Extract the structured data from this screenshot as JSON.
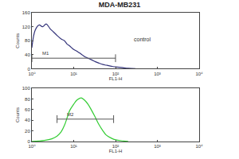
{
  "chart_data": [
    {
      "type": "line",
      "title": "MDA-MB231",
      "x_label": "FL1-H",
      "y_label": "Counts",
      "log": "x",
      "grid": false,
      "color": "#33337a",
      "x": [
        1,
        1.2,
        1.5,
        1.8,
        2.2,
        2.7,
        3.3,
        4,
        5,
        6,
        7,
        8,
        10,
        12,
        15,
        18,
        22,
        27,
        33,
        40,
        50,
        60,
        80,
        100,
        150,
        200,
        300
      ],
      "values": [
        60,
        110,
        125,
        120,
        128,
        115,
        105,
        95,
        85,
        80,
        70,
        65,
        55,
        50,
        42,
        35,
        30,
        25,
        20,
        16,
        12,
        10,
        7,
        5,
        3,
        1,
        0
      ],
      "xlim": [
        1,
        10000
      ],
      "xticks": [
        {
          "value": 1,
          "label": "10⁰"
        },
        {
          "value": 10,
          "label": "10¹"
        },
        {
          "value": 100,
          "label": "10²"
        },
        {
          "value": 1000,
          "label": "10³"
        },
        {
          "value": 10000,
          "label": "10⁴"
        }
      ],
      "ylim": [
        0,
        160
      ],
      "yticks": [
        0,
        40,
        80,
        120,
        160
      ],
      "gates": [
        {
          "label": "M1",
          "range": [
            1,
            100
          ],
          "level": 30
        }
      ],
      "annotations": [
        {
          "text": "control",
          "x": 250,
          "y": 85
        }
      ]
    },
    {
      "type": "line",
      "x_label": "FL1-H",
      "y_label": "Counts",
      "log": "x",
      "grid": false,
      "color": "#33cc33",
      "x": [
        1,
        2,
        3,
        4,
        5,
        6,
        7,
        8,
        10,
        12,
        15,
        18,
        22,
        27,
        33,
        40,
        50,
        60,
        80,
        100,
        150,
        200
      ],
      "values": [
        0,
        2,
        5,
        10,
        18,
        30,
        45,
        58,
        70,
        78,
        82,
        78,
        70,
        58,
        45,
        32,
        20,
        12,
        6,
        3,
        1,
        0
      ],
      "xlim": [
        1,
        10000
      ],
      "xticks": [
        {
          "value": 1,
          "label": "10⁰"
        },
        {
          "value": 10,
          "label": "10¹"
        },
        {
          "value": 100,
          "label": "10²"
        },
        {
          "value": 1000,
          "label": "10³"
        },
        {
          "value": 10000,
          "label": "10⁴"
        }
      ],
      "ylim": [
        0,
        100
      ],
      "yticks": [
        0,
        20,
        40,
        60,
        80,
        100
      ],
      "gates": [
        {
          "label": "M2",
          "range": [
            4,
            90
          ],
          "level": 42
        }
      ]
    }
  ]
}
